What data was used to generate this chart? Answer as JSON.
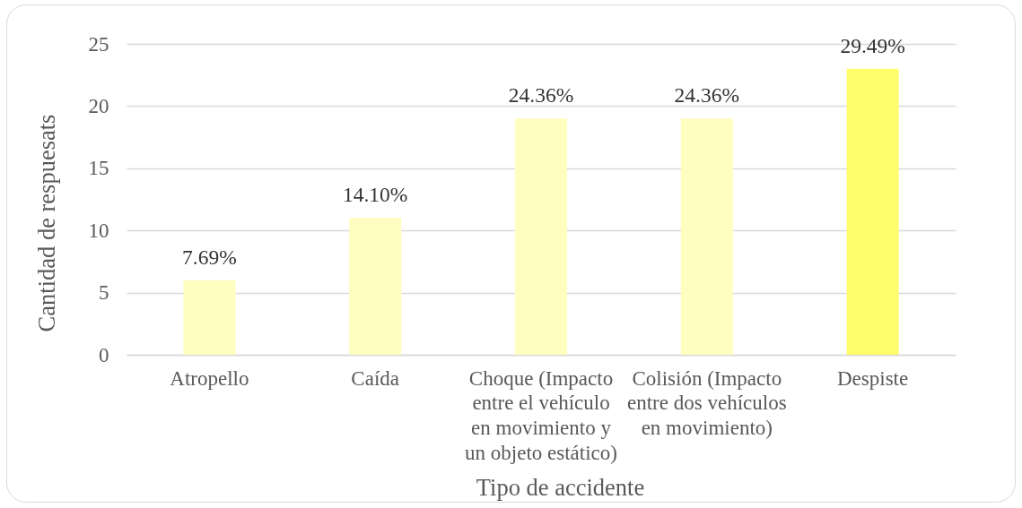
{
  "chart_data": {
    "type": "bar",
    "xlabel": "Tipo de accidente",
    "ylabel": "Cantidad de respuesats",
    "categories": [
      "Atropello",
      "Caída",
      "Choque (Impacto entre el vehículo en movimiento y un objeto estático)",
      "Colisión (Impacto entre dos vehículos en movimiento)",
      "Despiste"
    ],
    "values": [
      6,
      11,
      19,
      19,
      23
    ],
    "colors": [
      "#fffdbf",
      "#fffdbf",
      "#fffdbf",
      "#fffdbf",
      "#fffd6a"
    ],
    "annotations": [
      {
        "text": "7.69%",
        "x": "Atropello",
        "y": 6
      },
      {
        "text": "14.10%",
        "x": "Caída",
        "y": 11
      },
      {
        "text": "24.36%",
        "x": "Choque (Impacto entre el vehículo en movimiento y un objeto estático)",
        "y": 19
      },
      {
        "text": "24.36%",
        "x": "Colisión (Impacto entre dos vehículos en movimiento)",
        "y": 19
      },
      {
        "text": "29.49%",
        "x": "Despiste",
        "y": 23
      }
    ],
    "ylim": [
      0,
      25
    ],
    "yticks": [
      0,
      5,
      10,
      15,
      20,
      25
    ],
    "grid": "y"
  }
}
